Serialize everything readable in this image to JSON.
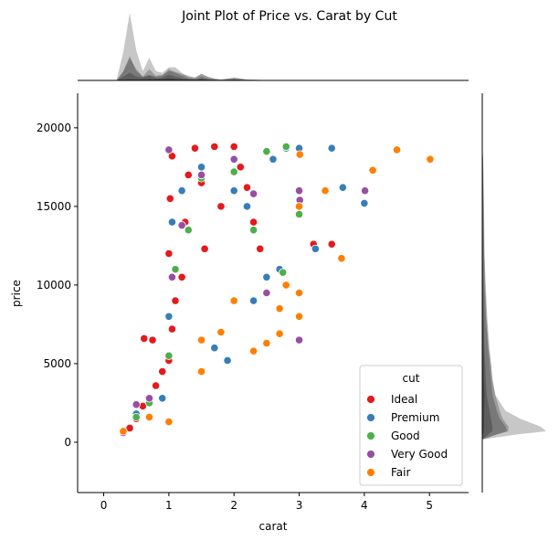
{
  "chart_data": {
    "type": "scatter",
    "title": "Joint Plot of Price vs. Carat by Cut",
    "xlabel": "carat",
    "ylabel": "price",
    "xlim": [
      -0.4,
      5.6
    ],
    "ylim": [
      -3200,
      22200
    ],
    "xticks": [
      0,
      1,
      2,
      3,
      4,
      5
    ],
    "yticks": [
      0,
      5000,
      10000,
      15000,
      20000
    ],
    "legend": {
      "title": "cut",
      "placement": "lower-right",
      "entries": [
        {
          "name": "Ideal",
          "color": "#e41a1c"
        },
        {
          "name": "Premium",
          "color": "#377eb8"
        },
        {
          "name": "Good",
          "color": "#4daf4a"
        },
        {
          "name": "Very Good",
          "color": "#984ea3"
        },
        {
          "name": "Fair",
          "color": "#ff7f00"
        }
      ]
    },
    "series": [
      {
        "name": "Ideal",
        "color": "#e41a1c",
        "points": [
          [
            0.3,
            600
          ],
          [
            0.4,
            900
          ],
          [
            0.5,
            1500
          ],
          [
            0.6,
            2300
          ],
          [
            0.7,
            2800
          ],
          [
            0.8,
            3600
          ],
          [
            0.9,
            4500
          ],
          [
            1.0,
            5200
          ],
          [
            1.05,
            7200
          ],
          [
            1.1,
            9000
          ],
          [
            1.0,
            12000
          ],
          [
            1.02,
            15500
          ],
          [
            1.05,
            18200
          ],
          [
            1.2,
            10500
          ],
          [
            1.25,
            14000
          ],
          [
            1.3,
            17000
          ],
          [
            1.4,
            18700
          ],
          [
            1.5,
            16500
          ],
          [
            1.55,
            12300
          ],
          [
            1.7,
            18800
          ],
          [
            1.8,
            15000
          ],
          [
            2.0,
            18800
          ],
          [
            2.1,
            17500
          ],
          [
            2.2,
            16200
          ],
          [
            2.3,
            14000
          ],
          [
            2.4,
            12300
          ],
          [
            3.22,
            12600
          ],
          [
            3.5,
            12600
          ],
          [
            0.62,
            6600
          ],
          [
            0.75,
            6500
          ]
        ]
      },
      {
        "name": "Premium",
        "color": "#377eb8",
        "points": [
          [
            0.3,
            700
          ],
          [
            0.5,
            1800
          ],
          [
            0.7,
            2700
          ],
          [
            0.9,
            2800
          ],
          [
            1.0,
            8000
          ],
          [
            1.05,
            14000
          ],
          [
            1.2,
            16000
          ],
          [
            1.5,
            17500
          ],
          [
            1.7,
            6000
          ],
          [
            1.9,
            5200
          ],
          [
            2.0,
            16000
          ],
          [
            2.2,
            15000
          ],
          [
            2.3,
            9000
          ],
          [
            2.5,
            10500
          ],
          [
            2.6,
            18000
          ],
          [
            2.7,
            11000
          ],
          [
            2.8,
            18700
          ],
          [
            3.0,
            18700
          ],
          [
            3.5,
            18700
          ],
          [
            3.67,
            16200
          ],
          [
            4.0,
            15200
          ],
          [
            3.25,
            12300
          ]
        ]
      },
      {
        "name": "Good",
        "color": "#4daf4a",
        "points": [
          [
            0.3,
            650
          ],
          [
            0.5,
            1600
          ],
          [
            0.7,
            2500
          ],
          [
            1.0,
            5500
          ],
          [
            1.1,
            11000
          ],
          [
            1.3,
            13500
          ],
          [
            1.5,
            16800
          ],
          [
            2.0,
            17200
          ],
          [
            2.3,
            13500
          ],
          [
            2.5,
            18500
          ],
          [
            2.8,
            18800
          ],
          [
            3.0,
            14500
          ],
          [
            2.75,
            10800
          ]
        ]
      },
      {
        "name": "Very Good",
        "color": "#984ea3",
        "points": [
          [
            0.3,
            600
          ],
          [
            0.5,
            2400
          ],
          [
            0.7,
            2800
          ],
          [
            1.0,
            18600
          ],
          [
            1.05,
            10500
          ],
          [
            1.2,
            13800
          ],
          [
            1.5,
            17000
          ],
          [
            2.0,
            18000
          ],
          [
            2.3,
            15800
          ],
          [
            2.5,
            9500
          ],
          [
            3.0,
            16000
          ],
          [
            3.01,
            15400
          ],
          [
            3.0,
            6500
          ],
          [
            4.01,
            16000
          ]
        ]
      },
      {
        "name": "Fair",
        "color": "#ff7f00",
        "points": [
          [
            0.3,
            700
          ],
          [
            0.7,
            1600
          ],
          [
            1.0,
            1300
          ],
          [
            1.5,
            4500
          ],
          [
            1.5,
            6500
          ],
          [
            1.8,
            7000
          ],
          [
            2.0,
            9000
          ],
          [
            2.3,
            5800
          ],
          [
            2.5,
            6300
          ],
          [
            2.7,
            6900
          ],
          [
            2.7,
            8500
          ],
          [
            2.8,
            10000
          ],
          [
            3.0,
            8000
          ],
          [
            3.0,
            9500
          ],
          [
            3.0,
            15000
          ],
          [
            3.01,
            18300
          ],
          [
            3.4,
            16000
          ],
          [
            3.65,
            11700
          ],
          [
            4.13,
            17300
          ],
          [
            4.5,
            18600
          ],
          [
            5.01,
            18000
          ]
        ]
      }
    ],
    "marginal_x_density": {
      "x": [
        0.2,
        0.3,
        0.4,
        0.5,
        0.6,
        0.7,
        0.8,
        0.9,
        1.0,
        1.1,
        1.2,
        1.3,
        1.4,
        1.5,
        1.6,
        1.7,
        1.8,
        2.0,
        2.2,
        2.5,
        3.0,
        3.5,
        4.0,
        5.0
      ],
      "series": [
        {
          "name": "Ideal",
          "values": [
            0.05,
            1.5,
            3.6,
            1.6,
            0.5,
            1.2,
            0.5,
            0.4,
            0.7,
            0.7,
            0.4,
            0.2,
            0.15,
            0.35,
            0.2,
            0.1,
            0.05,
            0.15,
            0.05,
            0.02,
            0.0,
            0.0,
            0.0,
            0.0
          ]
        },
        {
          "name": "Premium",
          "values": [
            0.02,
            0.5,
            1.3,
            0.5,
            0.2,
            0.3,
            0.2,
            0.25,
            0.6,
            0.45,
            0.35,
            0.25,
            0.15,
            0.35,
            0.18,
            0.1,
            0.05,
            0.15,
            0.05,
            0.02,
            0.01,
            0.0,
            0.0,
            0.0
          ]
        },
        {
          "name": "Good",
          "values": [
            0.01,
            0.2,
            0.4,
            0.2,
            0.15,
            0.25,
            0.12,
            0.15,
            0.3,
            0.2,
            0.12,
            0.07,
            0.05,
            0.1,
            0.05,
            0.02,
            0.01,
            0.04,
            0.01,
            0.0,
            0.0,
            0.0,
            0.0,
            0.0
          ]
        },
        {
          "name": "Very Good",
          "values": [
            0.02,
            0.45,
            1.2,
            0.6,
            0.2,
            0.6,
            0.25,
            0.3,
            0.5,
            0.4,
            0.25,
            0.12,
            0.08,
            0.2,
            0.1,
            0.05,
            0.02,
            0.07,
            0.02,
            0.01,
            0.0,
            0.0,
            0.0,
            0.0
          ]
        },
        {
          "name": "Fair",
          "values": [
            0.0,
            0.02,
            0.05,
            0.05,
            0.05,
            0.08,
            0.06,
            0.08,
            0.12,
            0.08,
            0.05,
            0.03,
            0.02,
            0.05,
            0.03,
            0.01,
            0.01,
            0.03,
            0.01,
            0.0,
            0.0,
            0.0,
            0.0,
            0.0
          ]
        }
      ]
    },
    "marginal_y_density": {
      "y": [
        200,
        500,
        700,
        1000,
        1500,
        2000,
        3000,
        4000,
        5000,
        6000,
        8000,
        10000,
        12000,
        15000,
        18000,
        19000
      ],
      "series": [
        {
          "name": "Ideal",
          "values": [
            0.1,
            1.2,
            2.2,
            2.0,
            1.3,
            0.8,
            0.45,
            0.35,
            0.3,
            0.22,
            0.15,
            0.1,
            0.07,
            0.05,
            0.03,
            0.0
          ]
        },
        {
          "name": "Premium",
          "values": [
            0.05,
            0.5,
            0.9,
            0.9,
            0.7,
            0.6,
            0.45,
            0.35,
            0.3,
            0.25,
            0.17,
            0.12,
            0.08,
            0.06,
            0.03,
            0.0
          ]
        },
        {
          "name": "Good",
          "values": [
            0.02,
            0.2,
            0.35,
            0.35,
            0.3,
            0.25,
            0.15,
            0.12,
            0.1,
            0.07,
            0.05,
            0.03,
            0.02,
            0.01,
            0.01,
            0.0
          ]
        },
        {
          "name": "Very Good",
          "values": [
            0.04,
            0.5,
            0.85,
            0.8,
            0.6,
            0.5,
            0.35,
            0.3,
            0.25,
            0.2,
            0.12,
            0.08,
            0.06,
            0.04,
            0.02,
            0.0
          ]
        },
        {
          "name": "Fair",
          "values": [
            0.0,
            0.02,
            0.05,
            0.06,
            0.06,
            0.07,
            0.08,
            0.06,
            0.05,
            0.04,
            0.03,
            0.02,
            0.01,
            0.01,
            0.0,
            0.0
          ]
        }
      ]
    }
  }
}
